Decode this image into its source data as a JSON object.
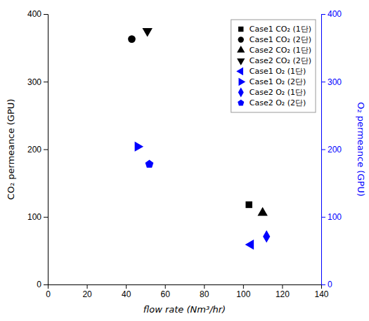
{
  "chart_data": {
    "type": "scatter",
    "xlabel": "flow rate (Nm³/hr)",
    "ylabel": "CO₂ permeance (GPU)",
    "y2label": "O₂ permeance (GPU)",
    "xlim": [
      0,
      140
    ],
    "xticks": [
      0,
      20,
      40,
      60,
      80,
      100,
      120,
      140
    ],
    "ylim": [
      0,
      400
    ],
    "yticks": [
      0,
      100,
      200,
      300,
      400
    ],
    "y2lim": [
      0,
      400
    ],
    "y2ticks": [
      0,
      100,
      200,
      300,
      400
    ],
    "legend": "upper right",
    "series": [
      {
        "name": "Case1 CO₂ (1단)",
        "x": [
          103
        ],
        "values": [
          118
        ],
        "color": "black",
        "marker": "square"
      },
      {
        "name": "Case1 CO₂ (2단)",
        "x": [
          43
        ],
        "values": [
          363
        ],
        "color": "black",
        "marker": "circle"
      },
      {
        "name": "Case2 CO₂ (1단)",
        "x": [
          110
        ],
        "values": [
          106
        ],
        "color": "black",
        "marker": "triangle-up"
      },
      {
        "name": "Case2 CO₂ (2단)",
        "x": [
          51
        ],
        "values": [
          375
        ],
        "color": "black",
        "marker": "triangle-down"
      },
      {
        "name": "Case1 O₂ (1단)",
        "x": [
          104
        ],
        "values": [
          59
        ],
        "color": "blue",
        "marker": "triangle-left",
        "axis": "y2"
      },
      {
        "name": "Case1 O₂ (2단)",
        "x": [
          46
        ],
        "values": [
          204
        ],
        "color": "blue",
        "marker": "triangle-right",
        "axis": "y2"
      },
      {
        "name": "Case2 O₂ (1단)",
        "x": [
          112
        ],
        "values": [
          71
        ],
        "color": "blue",
        "marker": "diamond",
        "axis": "y2"
      },
      {
        "name": "Case2 O₂ (2단)",
        "x": [
          52
        ],
        "values": [
          178
        ],
        "color": "blue",
        "marker": "pentagon",
        "axis": "y2"
      }
    ]
  }
}
